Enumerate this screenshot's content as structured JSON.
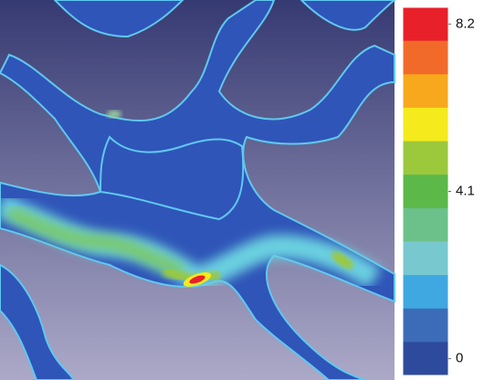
{
  "chart_data": {
    "type": "heatmap",
    "colorbar": {
      "clim": [
        0,
        8.2
      ],
      "cticks": [
        8.2,
        4.1,
        0
      ],
      "colors": [
        "#e8202a",
        "#f26a2a",
        "#f8a81c",
        "#f4ea1c",
        "#9cc83c",
        "#5cb848",
        "#6cc08a",
        "#78c8d0",
        "#40a8e0",
        "#3c6cb8",
        "#2e4a9c"
      ]
    }
  }
}
